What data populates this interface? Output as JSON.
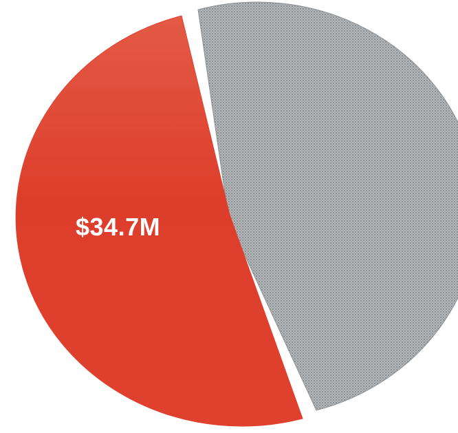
{
  "chart_data": {
    "type": "pie",
    "title": "",
    "categories": [
      "",
      ""
    ],
    "values": [
      34.7,
      null
    ],
    "labels": [
      "$34.7M",
      ""
    ],
    "colors": [
      "#e0402e",
      "#9a9d9f"
    ],
    "legend": "none",
    "exploded": true
  }
}
